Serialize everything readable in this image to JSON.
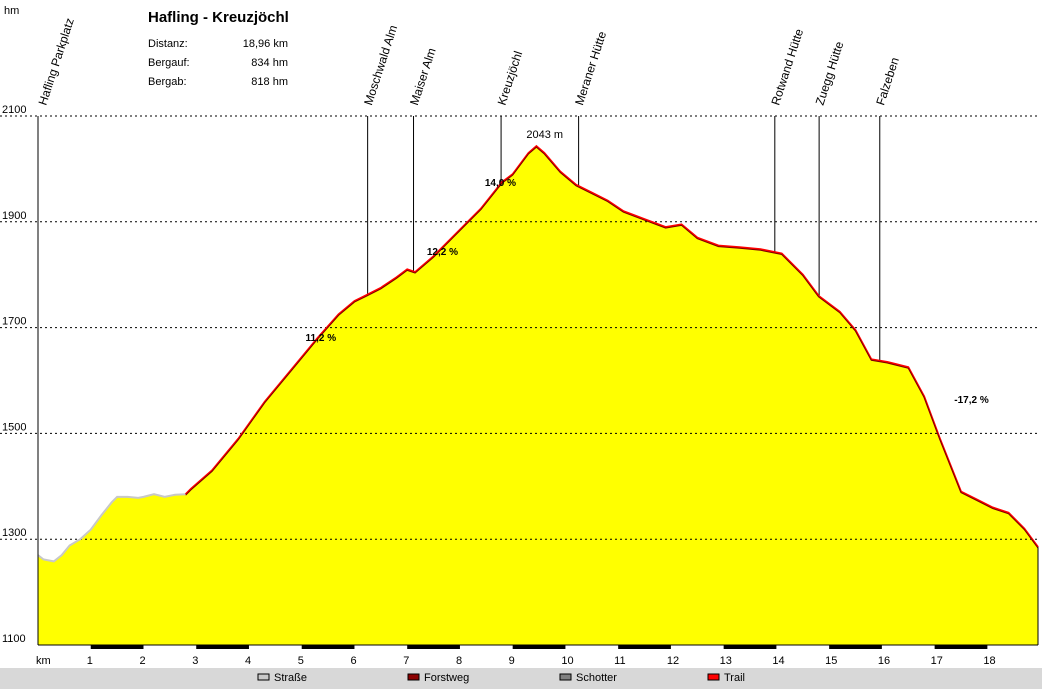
{
  "chart_data": {
    "type": "area",
    "title": "Hafling - Kreuzjöchl",
    "ylabel": "hm",
    "xlabel": "km",
    "stats": [
      {
        "label": "Distanz:",
        "value": "18,96 km"
      },
      {
        "label": "Bergauf:",
        "value": "834 hm"
      },
      {
        "label": "Bergab:",
        "value": "818 hm"
      }
    ],
    "xlim": [
      0,
      18.96
    ],
    "ylim": [
      1100,
      2100
    ],
    "yticks": [
      1100,
      1300,
      1500,
      1700,
      1900,
      2100
    ],
    "xticks": [
      1,
      2,
      3,
      4,
      5,
      6,
      7,
      8,
      9,
      10,
      11,
      12,
      13,
      14,
      15,
      16,
      17,
      18
    ],
    "grid": true,
    "fill_color": "#ffff00",
    "profile": {
      "x": [
        0,
        0.1,
        0.3,
        0.45,
        0.6,
        0.8,
        1.0,
        1.2,
        1.4,
        1.5,
        1.7,
        1.9,
        2.0,
        2.2,
        2.4,
        2.6,
        2.8,
        2.9,
        3.3,
        3.8,
        4.3,
        4.8,
        5.3,
        5.7,
        6.0,
        6.2,
        6.5,
        6.8,
        7.0,
        7.15,
        7.5,
        7.8,
        8.1,
        8.4,
        8.8,
        9.0,
        9.3,
        9.45,
        9.6,
        9.9,
        10.2,
        10.5,
        10.8,
        11.1,
        11.5,
        11.9,
        12.2,
        12.5,
        12.9,
        13.3,
        13.7,
        14.1,
        14.5,
        14.8,
        15.2,
        15.5,
        15.8,
        16.1,
        16.5,
        16.8,
        17.1,
        17.5,
        17.8,
        18.1,
        18.4,
        18.7,
        18.96
      ],
      "y": [
        1270,
        1262,
        1258,
        1270,
        1288,
        1300,
        1318,
        1345,
        1370,
        1380,
        1380,
        1378,
        1380,
        1385,
        1380,
        1384,
        1385,
        1395,
        1430,
        1490,
        1560,
        1620,
        1680,
        1725,
        1750,
        1760,
        1775,
        1795,
        1810,
        1805,
        1835,
        1865,
        1895,
        1925,
        1975,
        1990,
        2030,
        2043,
        2030,
        1995,
        1970,
        1955,
        1940,
        1920,
        1905,
        1890,
        1895,
        1870,
        1855,
        1852,
        1848,
        1840,
        1800,
        1760,
        1730,
        1695,
        1640,
        1635,
        1625,
        1570,
        1490,
        1390,
        1375,
        1360,
        1350,
        1320,
        1285
      ],
      "surface_segments": [
        {
          "type": "Straße",
          "from": 0,
          "to": 2.85
        },
        {
          "type": "Trail",
          "from": 2.85,
          "to": 18.96
        }
      ]
    },
    "waypoints": [
      {
        "name": "Hafling Parkplatz",
        "km": 0.05
      },
      {
        "name": "Moschwald Alm",
        "km": 6.25
      },
      {
        "name": "Maiser Alm",
        "km": 7.12
      },
      {
        "name": "Kreuzjöchl",
        "km": 8.78
      },
      {
        "name": "Meraner Hütte",
        "km": 10.25
      },
      {
        "name": "Rotwand Hütte",
        "km": 13.97
      },
      {
        "name": "Zuegg Hütte",
        "km": 14.81
      },
      {
        "name": "Falzeben",
        "km": 15.96
      }
    ],
    "annotations": [
      {
        "text": "2043 m",
        "km": 9.45,
        "elev": 2043,
        "color": "#cc0000"
      },
      {
        "text": "11,2 %",
        "km": 5.3,
        "elev": 1682
      },
      {
        "text": "12,2 %",
        "km": 7.6,
        "elev": 1845
      },
      {
        "text": "14,0 %",
        "km": 8.7,
        "elev": 1975
      },
      {
        "text": "-17,2 %",
        "km": 17.6,
        "elev": 1565
      }
    ],
    "legend": [
      {
        "label": "Straße",
        "color": "#c8c8c8"
      },
      {
        "label": "Forstweg",
        "color": "#8b0000"
      },
      {
        "label": "Schotter",
        "color": "#808080"
      },
      {
        "label": "Trail",
        "color": "#ff0000"
      }
    ],
    "colors": {
      "straße_line": "#c8c8c8",
      "trail_line": "#ff0000"
    }
  }
}
